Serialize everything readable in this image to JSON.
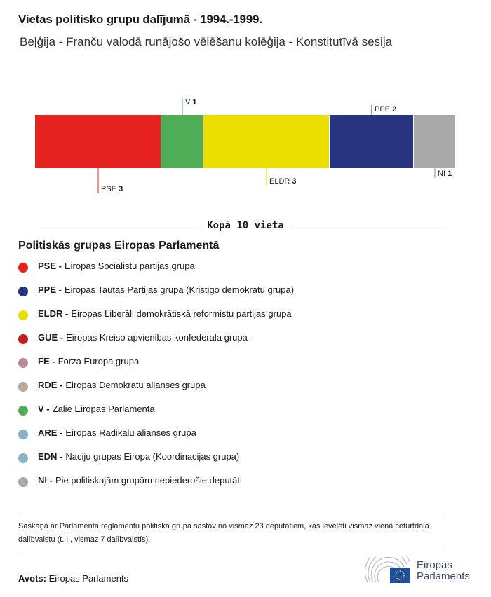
{
  "title": "Vietas politisko grupu dalījumā - 1994.-1999.",
  "subtitle": "Beļģija - Franču valodā runājošo vēlēšanu kolēģija - Konstitutīvā sesija",
  "chart_data": {
    "type": "bar",
    "orientation": "horizontal-stacked",
    "categories": [
      "PSE",
      "V",
      "ELDR",
      "PPE",
      "NI"
    ],
    "values": [
      3,
      1,
      3,
      2,
      1
    ],
    "colors": [
      "#e52421",
      "#4fad55",
      "#ebdf00",
      "#273580",
      "#aaaaaa"
    ],
    "total_label": "Kopā 10 vieta"
  },
  "legend": {
    "title": "Politiskās grupas Eiropas Parlamentā",
    "items": [
      {
        "abbr": "PSE -",
        "name": "Eiropas Sociālistu partijas grupa",
        "color": "#e52421"
      },
      {
        "abbr": "PPE -",
        "name": "Eiropas Tautas Partijas grupa (Kristigo demokratu grupa)",
        "color": "#273580"
      },
      {
        "abbr": "ELDR -",
        "name": "Eiropas Liberāli demokrātiskā reformistu partijas grupa",
        "color": "#ebdf00"
      },
      {
        "abbr": "GUE -",
        "name": "Eiropas Kreiso apvienibas konfederala grupa",
        "color": "#c21f24"
      },
      {
        "abbr": "FE -",
        "name": "Forza Europa grupa",
        "color": "#b88a93"
      },
      {
        "abbr": "RDE -",
        "name": "Eiropas Demokratu alianses grupa",
        "color": "#b8ac9c"
      },
      {
        "abbr": "V -",
        "name": "Zalie Eiropas Parlamenta",
        "color": "#4fad55"
      },
      {
        "abbr": "ARE -",
        "name": "Eiropas Radikalu alianses grupa",
        "color": "#88b2c8"
      },
      {
        "abbr": "EDN -",
        "name": "Naciju grupas Eiropa (Koordinacijas grupa)",
        "color": "#88b2c8"
      },
      {
        "abbr": "NI -",
        "name": "Pie politiskajām grupām nepiederošie deputāti",
        "color": "#aaaaaa"
      }
    ]
  },
  "note": "Saskaņā ar Parlamenta reglamentu politiskā grupa sastāv no vismaz 23 deputātiem, kas ievēlēti vismaz vienā ceturtdaļā dalībvalstu (t. i., vismaz 7 dalībvalstīs).",
  "source": {
    "label": "Avots:",
    "value": "Eiropas Parlaments"
  },
  "logo": {
    "line1": "Eiropas",
    "line2": "Parlaments"
  }
}
